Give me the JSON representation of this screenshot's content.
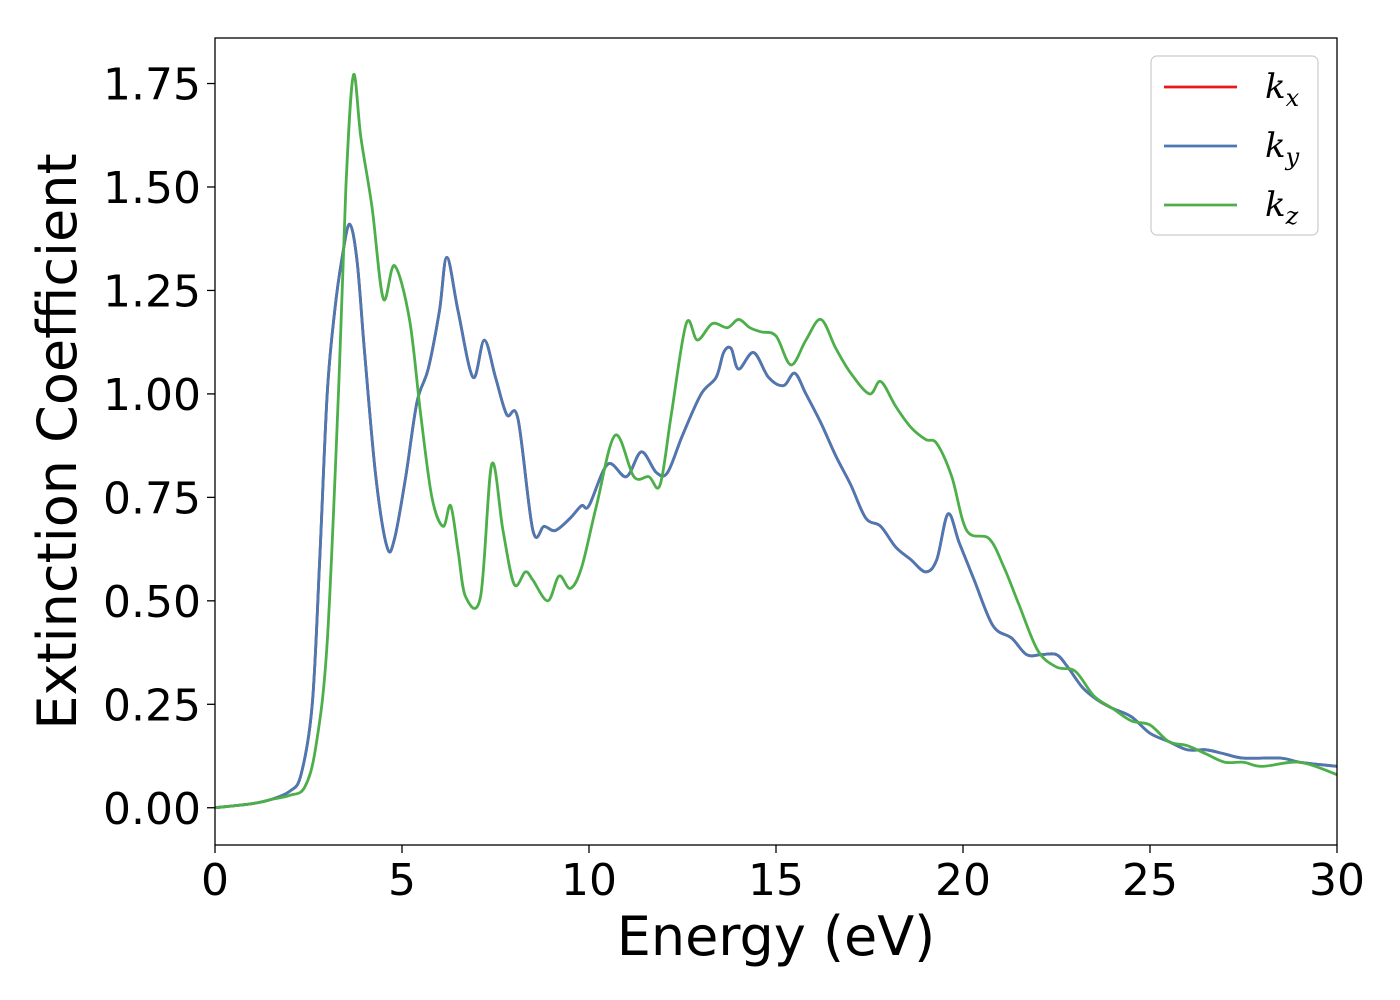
{
  "chart_data": {
    "type": "line",
    "title": "",
    "xlabel": "Energy (eV)",
    "ylabel": "Extinction Coefficient",
    "xlim": [
      0,
      30
    ],
    "ylim": [
      -0.09,
      1.86
    ],
    "xticks": [
      "0",
      "5",
      "10",
      "15",
      "20",
      "25",
      "30"
    ],
    "yticks": [
      "0.00",
      "0.25",
      "0.50",
      "0.75",
      "1.00",
      "1.25",
      "1.50",
      "1.75"
    ],
    "grid": false,
    "legend_position": "top-right",
    "series": [
      {
        "name": "k_x",
        "legend_base": "k",
        "legend_sub": "x",
        "color": "#e41a1c",
        "points": [
          [
            0,
            0
          ],
          [
            1,
            0.01
          ],
          [
            1.5,
            0.02
          ],
          [
            2,
            0.04
          ],
          [
            2.3,
            0.08
          ],
          [
            2.6,
            0.25
          ],
          [
            2.8,
            0.6
          ],
          [
            3,
            1.0
          ],
          [
            3.2,
            1.2
          ],
          [
            3.4,
            1.33
          ],
          [
            3.6,
            1.41
          ],
          [
            3.8,
            1.32
          ],
          [
            4,
            1.1
          ],
          [
            4.3,
            0.8
          ],
          [
            4.6,
            0.63
          ],
          [
            4.8,
            0.65
          ],
          [
            5.1,
            0.8
          ],
          [
            5.4,
            0.98
          ],
          [
            5.7,
            1.06
          ],
          [
            6,
            1.2
          ],
          [
            6.2,
            1.33
          ],
          [
            6.5,
            1.2
          ],
          [
            6.9,
            1.04
          ],
          [
            7.2,
            1.13
          ],
          [
            7.5,
            1.04
          ],
          [
            7.8,
            0.95
          ],
          [
            8.1,
            0.94
          ],
          [
            8.5,
            0.67
          ],
          [
            8.8,
            0.68
          ],
          [
            9.1,
            0.67
          ],
          [
            9.5,
            0.7
          ],
          [
            9.8,
            0.73
          ],
          [
            10,
            0.73
          ],
          [
            10.5,
            0.83
          ],
          [
            11,
            0.8
          ],
          [
            11.4,
            0.86
          ],
          [
            11.8,
            0.81
          ],
          [
            12.1,
            0.81
          ],
          [
            12.5,
            0.9
          ],
          [
            13,
            1.0
          ],
          [
            13.4,
            1.04
          ],
          [
            13.6,
            1.1
          ],
          [
            13.8,
            1.11
          ],
          [
            14,
            1.06
          ],
          [
            14.4,
            1.1
          ],
          [
            14.8,
            1.04
          ],
          [
            15.2,
            1.02
          ],
          [
            15.5,
            1.05
          ],
          [
            15.8,
            1.0
          ],
          [
            16.2,
            0.93
          ],
          [
            16.6,
            0.85
          ],
          [
            17,
            0.78
          ],
          [
            17.4,
            0.7
          ],
          [
            17.8,
            0.68
          ],
          [
            18.2,
            0.63
          ],
          [
            18.6,
            0.6
          ],
          [
            19,
            0.57
          ],
          [
            19.3,
            0.6
          ],
          [
            19.6,
            0.71
          ],
          [
            19.9,
            0.64
          ],
          [
            20.3,
            0.55
          ],
          [
            20.8,
            0.44
          ],
          [
            21.3,
            0.41
          ],
          [
            21.7,
            0.37
          ],
          [
            22.1,
            0.37
          ],
          [
            22.5,
            0.37
          ],
          [
            22.8,
            0.34
          ],
          [
            23.2,
            0.29
          ],
          [
            23.6,
            0.26
          ],
          [
            24,
            0.24
          ],
          [
            24.5,
            0.22
          ],
          [
            25,
            0.18
          ],
          [
            25.5,
            0.16
          ],
          [
            26,
            0.14
          ],
          [
            26.5,
            0.14
          ],
          [
            27,
            0.13
          ],
          [
            27.5,
            0.12
          ],
          [
            28.5,
            0.12
          ],
          [
            29,
            0.11
          ],
          [
            30,
            0.1
          ]
        ]
      },
      {
        "name": "k_y",
        "legend_base": "k",
        "legend_sub": "y",
        "color": "#4a79b3",
        "points": [
          [
            0,
            0
          ],
          [
            1,
            0.01
          ],
          [
            1.5,
            0.02
          ],
          [
            2,
            0.04
          ],
          [
            2.3,
            0.08
          ],
          [
            2.6,
            0.25
          ],
          [
            2.8,
            0.6
          ],
          [
            3,
            1.0
          ],
          [
            3.2,
            1.2
          ],
          [
            3.4,
            1.33
          ],
          [
            3.6,
            1.41
          ],
          [
            3.8,
            1.32
          ],
          [
            4,
            1.1
          ],
          [
            4.3,
            0.8
          ],
          [
            4.6,
            0.63
          ],
          [
            4.8,
            0.65
          ],
          [
            5.1,
            0.8
          ],
          [
            5.4,
            0.98
          ],
          [
            5.7,
            1.06
          ],
          [
            6,
            1.2
          ],
          [
            6.2,
            1.33
          ],
          [
            6.5,
            1.2
          ],
          [
            6.9,
            1.04
          ],
          [
            7.2,
            1.13
          ],
          [
            7.5,
            1.04
          ],
          [
            7.8,
            0.95
          ],
          [
            8.1,
            0.94
          ],
          [
            8.5,
            0.67
          ],
          [
            8.8,
            0.68
          ],
          [
            9.1,
            0.67
          ],
          [
            9.5,
            0.7
          ],
          [
            9.8,
            0.73
          ],
          [
            10,
            0.73
          ],
          [
            10.5,
            0.83
          ],
          [
            11,
            0.8
          ],
          [
            11.4,
            0.86
          ],
          [
            11.8,
            0.81
          ],
          [
            12.1,
            0.81
          ],
          [
            12.5,
            0.9
          ],
          [
            13,
            1.0
          ],
          [
            13.4,
            1.04
          ],
          [
            13.6,
            1.1
          ],
          [
            13.8,
            1.11
          ],
          [
            14,
            1.06
          ],
          [
            14.4,
            1.1
          ],
          [
            14.8,
            1.04
          ],
          [
            15.2,
            1.02
          ],
          [
            15.5,
            1.05
          ],
          [
            15.8,
            1.0
          ],
          [
            16.2,
            0.93
          ],
          [
            16.6,
            0.85
          ],
          [
            17,
            0.78
          ],
          [
            17.4,
            0.7
          ],
          [
            17.8,
            0.68
          ],
          [
            18.2,
            0.63
          ],
          [
            18.6,
            0.6
          ],
          [
            19,
            0.57
          ],
          [
            19.3,
            0.6
          ],
          [
            19.6,
            0.71
          ],
          [
            19.9,
            0.64
          ],
          [
            20.3,
            0.55
          ],
          [
            20.8,
            0.44
          ],
          [
            21.3,
            0.41
          ],
          [
            21.7,
            0.37
          ],
          [
            22.1,
            0.37
          ],
          [
            22.5,
            0.37
          ],
          [
            22.8,
            0.34
          ],
          [
            23.2,
            0.29
          ],
          [
            23.6,
            0.26
          ],
          [
            24,
            0.24
          ],
          [
            24.5,
            0.22
          ],
          [
            25,
            0.18
          ],
          [
            25.5,
            0.16
          ],
          [
            26,
            0.14
          ],
          [
            26.5,
            0.14
          ],
          [
            27,
            0.13
          ],
          [
            27.5,
            0.12
          ],
          [
            28.5,
            0.12
          ],
          [
            29,
            0.11
          ],
          [
            30,
            0.1
          ]
        ]
      },
      {
        "name": "k_z",
        "legend_base": "k",
        "legend_sub": "z",
        "color": "#4daf4a",
        "points": [
          [
            0,
            0
          ],
          [
            1,
            0.01
          ],
          [
            1.5,
            0.02
          ],
          [
            2,
            0.03
          ],
          [
            2.4,
            0.05
          ],
          [
            2.7,
            0.15
          ],
          [
            3,
            0.4
          ],
          [
            3.3,
            1.0
          ],
          [
            3.5,
            1.5
          ],
          [
            3.7,
            1.77
          ],
          [
            3.9,
            1.62
          ],
          [
            4.2,
            1.45
          ],
          [
            4.5,
            1.23
          ],
          [
            4.8,
            1.31
          ],
          [
            5.2,
            1.18
          ],
          [
            5.5,
            0.95
          ],
          [
            5.8,
            0.75
          ],
          [
            6.1,
            0.68
          ],
          [
            6.3,
            0.73
          ],
          [
            6.5,
            0.62
          ],
          [
            6.7,
            0.51
          ],
          [
            7.1,
            0.51
          ],
          [
            7.4,
            0.83
          ],
          [
            7.7,
            0.67
          ],
          [
            8,
            0.54
          ],
          [
            8.3,
            0.57
          ],
          [
            8.5,
            0.55
          ],
          [
            8.9,
            0.5
          ],
          [
            9.2,
            0.56
          ],
          [
            9.5,
            0.53
          ],
          [
            9.8,
            0.58
          ],
          [
            10.2,
            0.73
          ],
          [
            10.7,
            0.9
          ],
          [
            11.2,
            0.8
          ],
          [
            11.6,
            0.8
          ],
          [
            11.9,
            0.78
          ],
          [
            12.2,
            0.95
          ],
          [
            12.6,
            1.17
          ],
          [
            12.9,
            1.13
          ],
          [
            13.3,
            1.17
          ],
          [
            13.7,
            1.16
          ],
          [
            14,
            1.18
          ],
          [
            14.3,
            1.16
          ],
          [
            14.6,
            1.15
          ],
          [
            15,
            1.14
          ],
          [
            15.4,
            1.07
          ],
          [
            15.8,
            1.13
          ],
          [
            16.2,
            1.18
          ],
          [
            16.6,
            1.11
          ],
          [
            17,
            1.05
          ],
          [
            17.5,
            1.0
          ],
          [
            17.8,
            1.03
          ],
          [
            18.2,
            0.97
          ],
          [
            18.6,
            0.92
          ],
          [
            19,
            0.89
          ],
          [
            19.3,
            0.88
          ],
          [
            19.7,
            0.8
          ],
          [
            20.1,
            0.67
          ],
          [
            20.7,
            0.65
          ],
          [
            21.1,
            0.58
          ],
          [
            21.5,
            0.49
          ],
          [
            22,
            0.38
          ],
          [
            22.5,
            0.34
          ],
          [
            23,
            0.33
          ],
          [
            23.5,
            0.27
          ],
          [
            24,
            0.24
          ],
          [
            24.5,
            0.21
          ],
          [
            25,
            0.2
          ],
          [
            25.5,
            0.16
          ],
          [
            26,
            0.15
          ],
          [
            26.5,
            0.13
          ],
          [
            27,
            0.11
          ],
          [
            27.5,
            0.11
          ],
          [
            28,
            0.1
          ],
          [
            29,
            0.11
          ],
          [
            30,
            0.08
          ]
        ]
      }
    ]
  }
}
